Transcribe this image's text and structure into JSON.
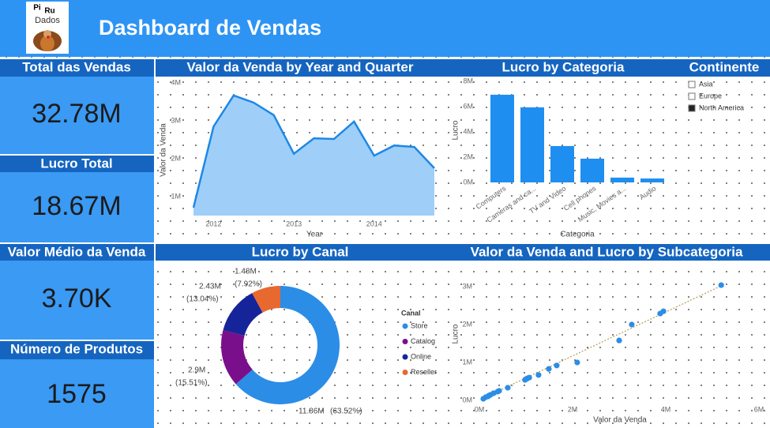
{
  "header": {
    "title": "Dashboard de Vendas",
    "logo": [
      "Pi",
      "Ru",
      "Dados"
    ]
  },
  "kpis": [
    {
      "label": "Total das Vendas",
      "value": "32.78M"
    },
    {
      "label": "Lucro Total",
      "value": "18.67M"
    },
    {
      "label": "Valor Médio da Venda",
      "value": "3.70K"
    },
    {
      "label": "Número de Produtos",
      "value": "1575"
    }
  ],
  "slicer": {
    "title": "Continente",
    "items": [
      "Asia",
      "Europe",
      "North America"
    ],
    "selected": [
      false,
      false,
      true
    ]
  },
  "chart_data": [
    {
      "type": "area",
      "title": "Valor da Venda by Year and Quarter",
      "x_label": "Year",
      "y_label": "Valor da Venda",
      "x": [
        2011.75,
        2012,
        2012.25,
        2012.5,
        2012.75,
        2013,
        2013.25,
        2013.5,
        2013.75,
        2014,
        2014.25,
        2014.5,
        2014.75
      ],
      "values": [
        710000,
        2850000,
        3670000,
        3480000,
        3150000,
        2130000,
        2540000,
        2520000,
        2980000,
        2080000,
        2350000,
        2310000,
        1750000
      ],
      "xlim": [
        2011.75,
        2014.75
      ],
      "xticks": [
        2012,
        2013,
        2014
      ],
      "ylim": [
        500000,
        4150000
      ],
      "yticks": [
        {
          "value": 1000000,
          "label": "1M"
        },
        {
          "value": 2000000,
          "label": "2M"
        },
        {
          "value": 3000000,
          "label": "3M"
        },
        {
          "value": 4000000,
          "label": "4M"
        }
      ],
      "color": "#1e88e5",
      "fill": "#9fcff8"
    },
    {
      "type": "bar",
      "title": "Lucro by Categoria",
      "x_label": "Categoria",
      "y_label": "Lucro",
      "categories": [
        "Computers",
        "Cameras and ca...",
        "TV and Video",
        "Cell phones",
        "Music, Movies a...",
        "Audio"
      ],
      "values": [
        6940000,
        5940000,
        2880000,
        1880000,
        380000,
        310000
      ],
      "ylim": [
        0,
        8400000
      ],
      "yticks": [
        {
          "value": 0,
          "label": "0M"
        },
        {
          "value": 2000000,
          "label": "2M"
        },
        {
          "value": 4000000,
          "label": "4M"
        },
        {
          "value": 6000000,
          "label": "6M"
        },
        {
          "value": 8000000,
          "label": "8M"
        }
      ],
      "color": "#1f8ef1"
    },
    {
      "type": "donut",
      "title": "Lucro by Canal",
      "legend_title": "Canal",
      "categories": [
        "Store",
        "Catalog",
        "Online",
        "Reseller"
      ],
      "values": [
        11860000,
        2900000,
        2430000,
        1480000
      ],
      "value_labels": [
        "11.86M",
        "2.9M",
        "2.43M",
        "1.48M"
      ],
      "percents": [
        63.52,
        15.51,
        13.04,
        7.92
      ],
      "percent_labels": [
        "(63.52%)",
        "(15.51%)",
        "(13.04%)",
        "(7.92%)"
      ],
      "colors": [
        "#2b8de6",
        "#7a0f8c",
        "#16249a",
        "#e8692f"
      ]
    },
    {
      "type": "scatter",
      "title": "Valor da Venda and Lucro by Subcategoria",
      "x_label": "Valor da Venda",
      "y_label": "Lucro",
      "x": [
        85000,
        136000,
        186000,
        203000,
        237000,
        305000,
        390000,
        424000,
        610000,
        980000,
        1000000,
        1030000,
        1070000,
        1270000,
        1490000,
        1660000,
        2100000,
        3000000,
        3270000,
        3880000,
        3950000,
        5190000
      ],
      "values": [
        42000,
        83000,
        104000,
        125000,
        146000,
        188000,
        229000,
        250000,
        333000,
        540000,
        560000,
        580000,
        600000,
        670000,
        830000,
        920000,
        1000000,
        1580000,
        2000000,
        2290000,
        2350000,
        3040000
      ],
      "xlim": [
        -100000,
        6100000
      ],
      "xticks": [
        {
          "value": 0,
          "label": "0M"
        },
        {
          "value": 2000000,
          "label": "2M"
        },
        {
          "value": 4000000,
          "label": "4M"
        },
        {
          "value": 6000000,
          "label": "6M"
        }
      ],
      "ylim": [
        -150000,
        3500000
      ],
      "yticks": [
        {
          "value": 0,
          "label": "0M"
        },
        {
          "value": 1000000,
          "label": "1M"
        },
        {
          "value": 2000000,
          "label": "2M"
        },
        {
          "value": 3000000,
          "label": "3M"
        }
      ],
      "color": "#2b8de6"
    }
  ]
}
